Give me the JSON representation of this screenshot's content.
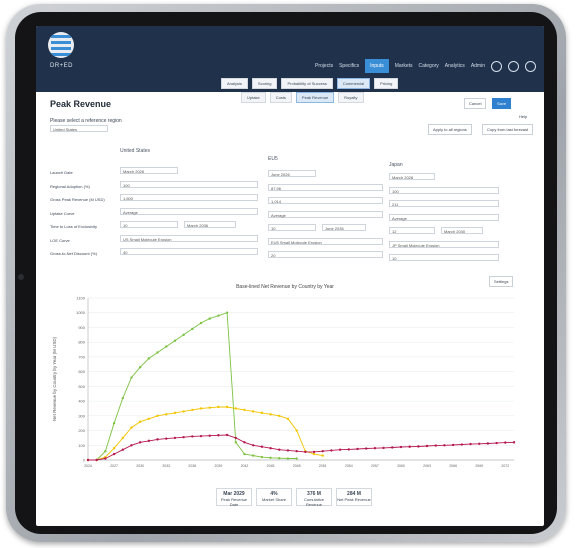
{
  "nav": {
    "brand": "DR+ED",
    "items": [
      "Projects",
      "Specifics",
      "Inputs",
      "Markets",
      "Category",
      "Analytics",
      "Admin"
    ],
    "active_index": 2,
    "icons": [
      "help-icon",
      "info-icon",
      "user-icon"
    ]
  },
  "tabs_row1": [
    "Analysis",
    "Scoring",
    "Probability of Success",
    "Commercial",
    "Pricing"
  ],
  "tabs_row1_selected": 3,
  "tabs_row2": [
    "Uptake",
    "Costs",
    "Peak Revenue",
    "Royalty"
  ],
  "tabs_row2_selected": 2,
  "page": {
    "title": "Peak Revenue",
    "cancel_label": "Cancel",
    "save_label": "Save",
    "help_label": "Help",
    "prompt": "Please select a reference region",
    "region_value": "United States",
    "apply_label": "Apply to all regions",
    "copy_label": "Copy from last forecast"
  },
  "columns": [
    "United States",
    "EU5",
    "Japan"
  ],
  "rows": [
    {
      "label": "Launch Date",
      "values": [
        "March 2026",
        "June 2026",
        "March 2028"
      ]
    },
    {
      "label": "Regional Adoption (%)",
      "values": [
        "100",
        "87.96",
        "100"
      ]
    },
    {
      "label": "Gross Peak Revenue (M USD)",
      "values": [
        "1,600",
        "1,014",
        "211"
      ]
    },
    {
      "label": "Uptake Curve",
      "values": [
        "Average",
        "Average",
        "Average"
      ]
    },
    {
      "label": "Time to Loss of Exclusivity",
      "values": [
        "10",
        "10",
        "12"
      ]
    },
    {
      "label": "LOE Curve",
      "values": [
        "US Small Molecule Erosion",
        "EU5 Small Molecule Erosion",
        "JP Small Molecule Erosion"
      ]
    },
    {
      "label": "Gross-to-Net Discount (%)",
      "values": [
        "40",
        "20",
        "10"
      ]
    }
  ],
  "loe_dates": [
    "March 2036",
    "June 2036",
    "March 2040"
  ],
  "chart_button": "Settings",
  "chart_data": {
    "type": "line",
    "title": "Base-lined Net Revenue by Country by Year",
    "ylabel": "Net Revenue by Country by Year (M USD)",
    "xlabel": "",
    "ylim": [
      0,
      1100
    ],
    "yticks": [
      0,
      100,
      200,
      300,
      400,
      500,
      600,
      700,
      800,
      900,
      1000,
      1100
    ],
    "x": [
      2024,
      2025,
      2026,
      2027,
      2028,
      2029,
      2030,
      2031,
      2032,
      2033,
      2034,
      2035,
      2036,
      2037,
      2038,
      2039,
      2040,
      2041,
      2042,
      2043,
      2044,
      2045,
      2046,
      2047,
      2048,
      2049,
      2050,
      2051,
      2052,
      2053,
      2054,
      2055,
      2056,
      2057,
      2058,
      2059,
      2060,
      2061,
      2062,
      2063,
      2064,
      2065,
      2066,
      2067,
      2068,
      2069,
      2070,
      2071,
      2072,
      2073
    ],
    "series": [
      {
        "color": "#7cc242",
        "values": [
          0,
          0,
          60,
          250,
          420,
          560,
          630,
          690,
          730,
          770,
          810,
          850,
          890,
          930,
          960,
          980,
          1000,
          120,
          40,
          30,
          20,
          15,
          12,
          10,
          10,
          null,
          null,
          null,
          null,
          null,
          null,
          null,
          null,
          null,
          null,
          null,
          null,
          null,
          null,
          null,
          null,
          null,
          null,
          null,
          null,
          null,
          null,
          null,
          null,
          null
        ]
      },
      {
        "color": "#f2c500",
        "values": [
          0,
          0,
          20,
          80,
          150,
          220,
          260,
          280,
          300,
          310,
          320,
          330,
          340,
          350,
          355,
          360,
          360,
          350,
          340,
          330,
          320,
          310,
          300,
          280,
          200,
          60,
          40,
          30,
          null,
          null,
          null,
          null,
          null,
          null,
          null,
          null,
          null,
          null,
          null,
          null,
          null,
          null,
          null,
          null,
          null,
          null,
          null,
          null,
          null,
          null
        ]
      },
      {
        "color": "#b5174f",
        "values": [
          0,
          0,
          10,
          40,
          70,
          100,
          120,
          130,
          140,
          145,
          150,
          155,
          160,
          162,
          165,
          168,
          170,
          150,
          120,
          100,
          90,
          80,
          70,
          65,
          60,
          55,
          55,
          60,
          65,
          70,
          72,
          75,
          78,
          80,
          82,
          85,
          88,
          90,
          92,
          95,
          98,
          100,
          102,
          105,
          108,
          110,
          112,
          115,
          118,
          120
        ]
      }
    ]
  },
  "stats": [
    {
      "label": "Peak Revenue Date",
      "value": "Mar 2029"
    },
    {
      "label": "Market Share",
      "value": "4%"
    },
    {
      "label": "Cumulative Revenue",
      "value": "376 M"
    },
    {
      "label": "Net Peak Revenue",
      "value": "284 M"
    }
  ],
  "colors": {
    "nav": "#20324b",
    "accent": "#2f80ce"
  }
}
